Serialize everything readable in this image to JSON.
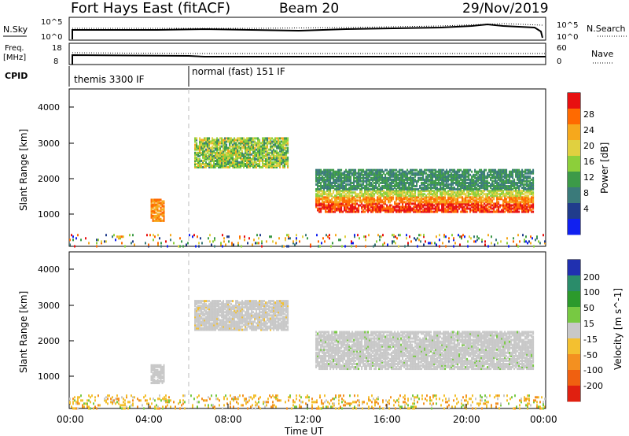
{
  "header": {
    "title": "Fort Hays East (fitACF)",
    "beam": "Beam 20",
    "date": "29/Nov/2019"
  },
  "strips": {
    "nsky": {
      "label": "N.Sky",
      "ticks": [
        "10^5",
        "10^0"
      ]
    },
    "nsearch": {
      "label": "N.Search",
      "ticks": [
        "10^5",
        "10^0"
      ]
    },
    "freq": {
      "label_line1": "Freq.",
      "label_line2": "[MHz]",
      "ticks": [
        "18",
        "8"
      ]
    },
    "nave": {
      "label": "Nave",
      "ticks": [
        "60",
        "0"
      ]
    },
    "cpid": {
      "label": "CPID",
      "segments": [
        {
          "name": "themis 3300 IF",
          "start_hour": 0,
          "end_hour": 6
        },
        {
          "name": "normal (fast) 151 IF",
          "start_hour": 6,
          "end_hour": 24
        }
      ]
    }
  },
  "chart_data": [
    {
      "type": "heatmap",
      "title": "",
      "ylabel": "Slant Range [km]",
      "xlabel": "",
      "colorbar": {
        "label": "Power [dB]",
        "ticks": [
          "28",
          "24",
          "20",
          "16",
          "12",
          "8",
          "4"
        ],
        "colors": [
          "#e81010",
          "#ff6a00",
          "#f6a81c",
          "#e0d040",
          "#8ccf3a",
          "#3c9a48",
          "#3a7a7a",
          "#203c8c",
          "#1020f0"
        ]
      },
      "x_range_hours": [
        0,
        24
      ],
      "y_range_km": [
        180,
        4600
      ],
      "y_ticks": [
        "4000",
        "3000",
        "2000",
        "1000"
      ],
      "regions": [
        {
          "t0": 6.3,
          "t1": 11.0,
          "r_low": 2400,
          "r_high": 3250,
          "level": "12-20 dB"
        },
        {
          "t0": 12.2,
          "t1": 23.5,
          "r_low": 1150,
          "r_high": 2400,
          "level": "20-28 dB at lower edge"
        },
        {
          "t0": 4.1,
          "t1": 4.8,
          "r_low": 900,
          "r_high": 1500,
          "level": "16-24 dB"
        }
      ]
    },
    {
      "type": "heatmap",
      "title": "",
      "ylabel": "Slant Range [km]",
      "xlabel": "Time UT",
      "colorbar": {
        "label": "Velocity [m s^-1]",
        "ticks": [
          "200",
          "100",
          "50",
          "15",
          "-15",
          "-50",
          "-100",
          "-200"
        ],
        "colors": [
          "#2030b0",
          "#2a8c6a",
          "#2c9a2c",
          "#77c942",
          "#c8c8c8",
          "#f3c030",
          "#f39020",
          "#f06010",
          "#e02010"
        ]
      },
      "x_ticks": [
        "00:00",
        "04:00",
        "08:00",
        "12:00",
        "16:00",
        "20:00",
        "00:00"
      ],
      "y_ticks": [
        "4000",
        "3000",
        "2000",
        "1000"
      ],
      "regions": [
        {
          "t0": 6.3,
          "t1": 11.0,
          "r_low": 2400,
          "r_high": 3250,
          "level": "ground scatter (grey)"
        },
        {
          "t0": 12.2,
          "t1": 23.5,
          "r_low": 1300,
          "r_high": 2400,
          "level": "ground scatter (grey)"
        },
        {
          "t0": 0,
          "t1": 24,
          "r_low": 200,
          "r_high": 500,
          "level": "-15 to -50 m/s near range"
        }
      ]
    }
  ]
}
